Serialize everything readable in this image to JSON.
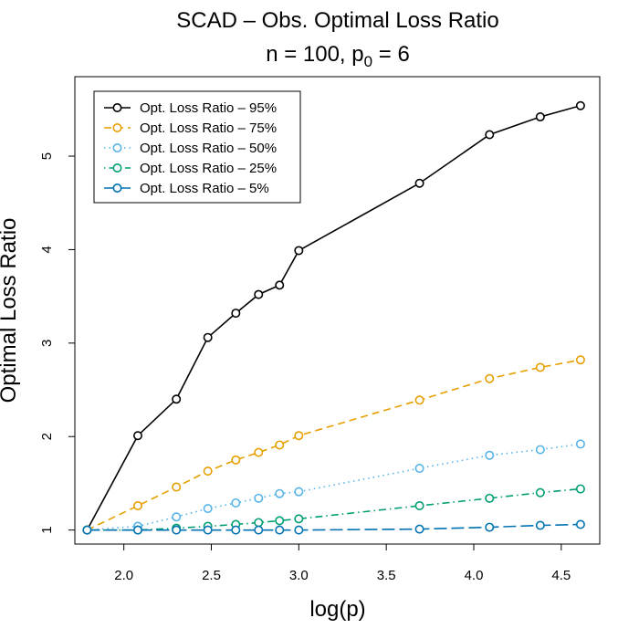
{
  "chart_data": {
    "type": "line",
    "title": "SCAD – Obs. Optimal Loss Ratio",
    "subtitle_main": "n = 100, p",
    "subtitle_sub": "0",
    "subtitle_tail": " = 6",
    "xlabel": "log(p)",
    "ylabel": "Optimal Loss Ratio",
    "xlim": [
      1.72,
      4.72
    ],
    "ylim": [
      0.85,
      5.85
    ],
    "xticks": [
      2.0,
      2.5,
      3.0,
      3.5,
      4.0,
      4.5
    ],
    "xtick_labels": [
      "2.0",
      "2.5",
      "3.0",
      "3.5",
      "4.0",
      "4.5"
    ],
    "yticks": [
      1,
      2,
      3,
      4,
      5
    ],
    "ytick_labels": [
      "1",
      "2",
      "3",
      "4",
      "5"
    ],
    "grid": false,
    "legend_position": "top-left",
    "x": [
      1.79,
      2.08,
      2.3,
      2.48,
      2.64,
      2.77,
      2.89,
      3.0,
      3.69,
      4.09,
      4.38,
      4.61
    ],
    "series": [
      {
        "name": "Opt. Loss Ratio – 95%",
        "color": "#000000",
        "dash": "solid",
        "values": [
          1.0,
          2.01,
          2.4,
          3.06,
          3.32,
          3.52,
          3.62,
          3.99,
          4.71,
          5.23,
          5.42,
          5.54
        ]
      },
      {
        "name": "Opt. Loss Ratio – 75%",
        "color": "#E69F00",
        "dash": "dashed",
        "values": [
          1.0,
          1.26,
          1.46,
          1.63,
          1.75,
          1.83,
          1.91,
          2.01,
          2.39,
          2.62,
          2.74,
          2.82
        ]
      },
      {
        "name": "Opt. Loss Ratio – 50%",
        "color": "#56B4E9",
        "dash": "dotted",
        "values": [
          1.0,
          1.04,
          1.14,
          1.23,
          1.29,
          1.34,
          1.39,
          1.41,
          1.66,
          1.8,
          1.86,
          1.92
        ]
      },
      {
        "name": "Opt. Loss Ratio – 25%",
        "color": "#009E73",
        "dash": "dotdash",
        "values": [
          1.0,
          1.0,
          1.02,
          1.04,
          1.06,
          1.08,
          1.1,
          1.12,
          1.26,
          1.34,
          1.4,
          1.44
        ]
      },
      {
        "name": "Opt. Loss Ratio – 5%",
        "color": "#0072B2",
        "dash": "longdash",
        "values": [
          1.0,
          1.0,
          1.0,
          1.0,
          1.0,
          1.0,
          1.0,
          1.0,
          1.01,
          1.03,
          1.05,
          1.06
        ]
      }
    ]
  }
}
